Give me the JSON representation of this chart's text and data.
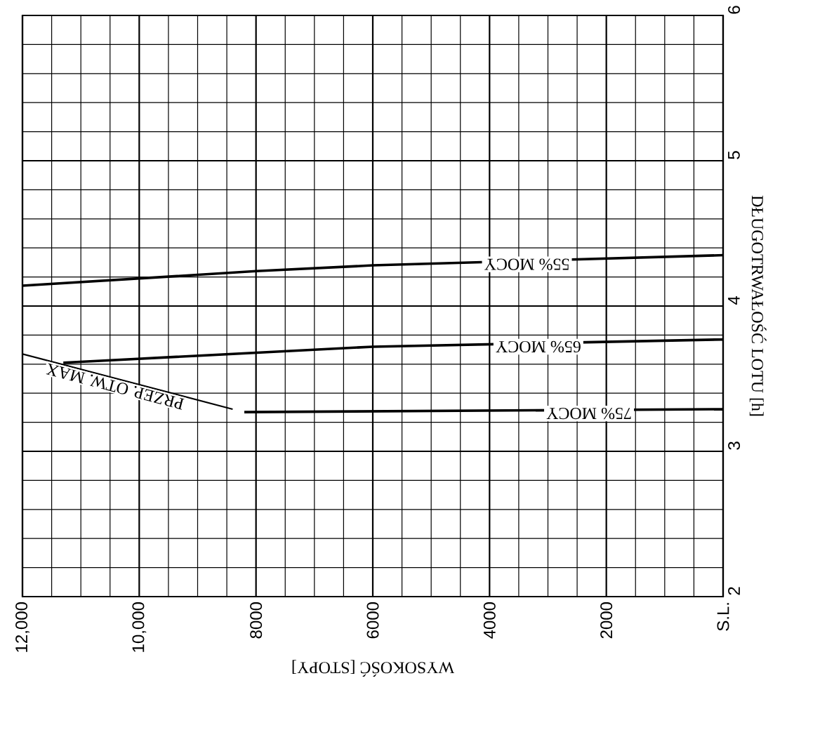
{
  "chart_data": {
    "type": "line",
    "xlabel": "WYSOKOŚĆ [STOPY]",
    "ylabel": "DŁUGOTRWAŁOŚĆ LOTU [h]",
    "xlim": [
      12000,
      0
    ],
    "ylim": [
      2,
      6
    ],
    "xticks": [
      {
        "value": 12000,
        "label": "12,000"
      },
      {
        "value": 10000,
        "label": "10,000"
      },
      8000,
      6000,
      4000,
      2000,
      {
        "value": 0,
        "label": "S.L."
      }
    ],
    "yticks": [
      2,
      3,
      4,
      5,
      6
    ],
    "grid": true,
    "marker": "none",
    "line_style": "solid",
    "series": [
      {
        "name": "55% MOCY",
        "color": "#000000",
        "x": [
          12000,
          8000,
          6000,
          0
        ],
        "values": [
          4.14,
          4.24,
          4.28,
          4.35
        ]
      },
      {
        "name": "65% MOCY",
        "color": "#000000",
        "x": [
          11300,
          6000,
          0
        ],
        "values": [
          3.61,
          3.72,
          3.77
        ]
      },
      {
        "name": "75% MOCY",
        "color": "#000000",
        "x": [
          8200,
          0
        ],
        "values": [
          3.27,
          3.29
        ]
      },
      {
        "name": "PRZEP. OTW. MAX",
        "color": "#000000",
        "x": [
          12000,
          8400
        ],
        "values": [
          3.67,
          3.29
        ]
      }
    ]
  }
}
